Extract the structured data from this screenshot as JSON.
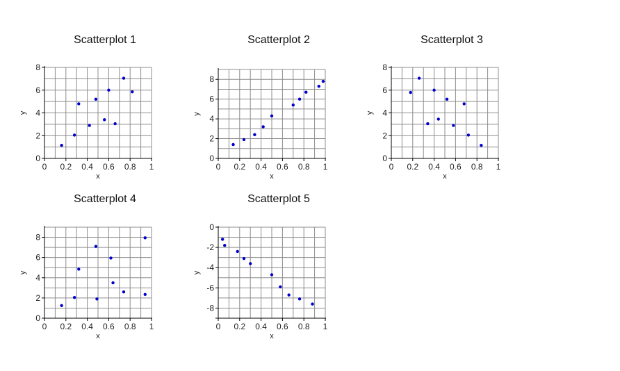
{
  "colors": {
    "point": "#0000cc",
    "grid": "#8c8c8c",
    "axis": "#000000",
    "text": "#222222"
  },
  "chart_data": [
    {
      "type": "scatter",
      "title": "Scatterplot 1",
      "xlabel": "x",
      "ylabel": "y",
      "xlim": [
        0,
        1
      ],
      "ylim": [
        0,
        8
      ],
      "xticks": [
        "0",
        "0.2",
        "0.4",
        "0.6",
        "0.8",
        "1"
      ],
      "yticks": [
        "0",
        "2",
        "4",
        "6",
        "8"
      ],
      "grid": true,
      "points": [
        {
          "x": 0.16,
          "y": 1.15
        },
        {
          "x": 0.28,
          "y": 2.05
        },
        {
          "x": 0.32,
          "y": 4.8
        },
        {
          "x": 0.42,
          "y": 2.9
        },
        {
          "x": 0.48,
          "y": 5.2
        },
        {
          "x": 0.56,
          "y": 3.4
        },
        {
          "x": 0.6,
          "y": 6.0
        },
        {
          "x": 0.66,
          "y": 3.05
        },
        {
          "x": 0.74,
          "y": 7.05
        },
        {
          "x": 0.82,
          "y": 5.85
        }
      ]
    },
    {
      "type": "scatter",
      "title": "Scatterplot 2",
      "xlabel": "x",
      "ylabel": "y",
      "xlim": [
        0,
        1
      ],
      "ylim": [
        0,
        9
      ],
      "xticks": [
        "0",
        "0.2",
        "0.4",
        "0.6",
        "0.8",
        "1"
      ],
      "yticks": [
        "0",
        "2",
        "4",
        "6",
        "8"
      ],
      "grid": true,
      "points": [
        {
          "x": 0.14,
          "y": 1.4
        },
        {
          "x": 0.24,
          "y": 1.9
        },
        {
          "x": 0.34,
          "y": 2.4
        },
        {
          "x": 0.42,
          "y": 3.2
        },
        {
          "x": 0.5,
          "y": 4.3
        },
        {
          "x": 0.7,
          "y": 5.4
        },
        {
          "x": 0.76,
          "y": 6.0
        },
        {
          "x": 0.82,
          "y": 6.7
        },
        {
          "x": 0.94,
          "y": 7.3
        },
        {
          "x": 0.98,
          "y": 7.8
        }
      ]
    },
    {
      "type": "scatter",
      "title": "Scatterplot 3",
      "xlabel": "x",
      "ylabel": "y",
      "xlim": [
        0,
        1
      ],
      "ylim": [
        0,
        8
      ],
      "xticks": [
        "0",
        "0.2",
        "0.4",
        "0.6",
        "0.8",
        "1"
      ],
      "yticks": [
        "0",
        "2",
        "4",
        "6",
        "8"
      ],
      "grid": true,
      "points": [
        {
          "x": 0.18,
          "y": 5.8
        },
        {
          "x": 0.26,
          "y": 7.05
        },
        {
          "x": 0.34,
          "y": 3.05
        },
        {
          "x": 0.4,
          "y": 6.0
        },
        {
          "x": 0.44,
          "y": 3.45
        },
        {
          "x": 0.52,
          "y": 5.2
        },
        {
          "x": 0.58,
          "y": 2.9
        },
        {
          "x": 0.68,
          "y": 4.8
        },
        {
          "x": 0.72,
          "y": 2.05
        },
        {
          "x": 0.84,
          "y": 1.15
        }
      ]
    },
    {
      "type": "scatter",
      "title": "Scatterplot 4",
      "xlabel": "x",
      "ylabel": "y",
      "xlim": [
        0,
        1
      ],
      "ylim": [
        0,
        9
      ],
      "xticks": [
        "0",
        "0.2",
        "0.4",
        "0.6",
        "0.8",
        "1"
      ],
      "yticks": [
        "0",
        "2",
        "4",
        "6",
        "8"
      ],
      "grid": true,
      "points": [
        {
          "x": 0.16,
          "y": 1.25
        },
        {
          "x": 0.28,
          "y": 2.05
        },
        {
          "x": 0.32,
          "y": 4.85
        },
        {
          "x": 0.48,
          "y": 7.1
        },
        {
          "x": 0.49,
          "y": 1.9
        },
        {
          "x": 0.62,
          "y": 5.95
        },
        {
          "x": 0.64,
          "y": 3.5
        },
        {
          "x": 0.74,
          "y": 2.6
        },
        {
          "x": 0.94,
          "y": 2.35
        },
        {
          "x": 0.94,
          "y": 7.95
        }
      ]
    },
    {
      "type": "scatter",
      "title": "Scatterplot 5",
      "xlabel": "x",
      "ylabel": "y",
      "xlim": [
        0,
        1
      ],
      "ylim": [
        -9,
        0
      ],
      "xticks": [
        "0",
        "0.2",
        "0.4",
        "0.6",
        "0.8",
        "1"
      ],
      "yticks": [
        "0",
        "-2",
        "-4",
        "-6",
        "-8"
      ],
      "grid": true,
      "points": [
        {
          "x": 0.04,
          "y": -1.2
        },
        {
          "x": 0.06,
          "y": -1.8
        },
        {
          "x": 0.18,
          "y": -2.4
        },
        {
          "x": 0.24,
          "y": -3.1
        },
        {
          "x": 0.3,
          "y": -3.6
        },
        {
          "x": 0.5,
          "y": -4.7
        },
        {
          "x": 0.58,
          "y": -5.9
        },
        {
          "x": 0.66,
          "y": -6.7
        },
        {
          "x": 0.76,
          "y": -7.1
        },
        {
          "x": 0.88,
          "y": -7.6
        }
      ]
    }
  ]
}
